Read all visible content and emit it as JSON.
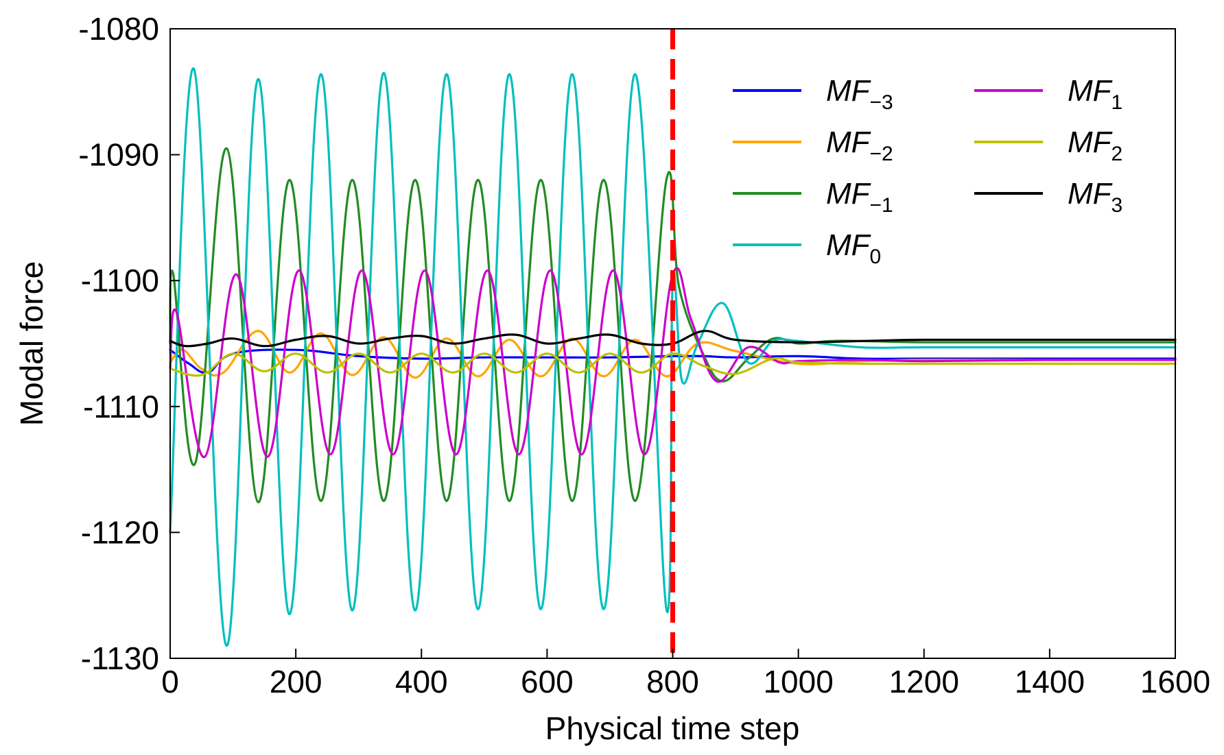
{
  "chart_data": {
    "type": "line",
    "title": "",
    "xlabel": "Physical time step",
    "ylabel": "Modal force",
    "xlim": [
      0,
      1600
    ],
    "ylim": [
      -1130,
      -1080
    ],
    "xticks": [
      0,
      200,
      400,
      600,
      800,
      1000,
      1200,
      1400,
      1600
    ],
    "yticks": [
      -1080,
      -1090,
      -1100,
      -1110,
      -1120,
      -1130
    ],
    "xtick_labels": [
      "0",
      "200",
      "400",
      "600",
      "800",
      "1000",
      "1200",
      "1400",
      "1600"
    ],
    "ytick_labels": [
      "-1080",
      "-1090",
      "-1100",
      "-1110",
      "-1120",
      "-1130"
    ],
    "grid": false,
    "legend_position": "top-right",
    "vertical_marker": {
      "x": 800,
      "color": "#ff0000",
      "style": "dashed"
    },
    "series": [
      {
        "name": "MF",
        "sub": "−3",
        "color": "#0000ff",
        "x": [
          0,
          30,
          60,
          100,
          200,
          300,
          400,
          500,
          600,
          700,
          800,
          850,
          900,
          1000,
          1100,
          1200,
          1400,
          1600
        ],
        "y": [
          -1105.5,
          -1106.6,
          -1107.3,
          -1105.8,
          -1105.5,
          -1106,
          -1106.2,
          -1106.1,
          -1106.1,
          -1106.1,
          -1106,
          -1106,
          -1106.1,
          -1106,
          -1106.2,
          -1106.2,
          -1106.2,
          -1106.2
        ]
      },
      {
        "name": "MF",
        "sub": "−2",
        "color": "#ffa500",
        "x": [
          0,
          20,
          50,
          85,
          140,
          190,
          240,
          290,
          340,
          390,
          440,
          490,
          540,
          590,
          640,
          690,
          740,
          790,
          840,
          900,
          1000,
          1100,
          1200,
          1400,
          1600
        ],
        "y": [
          -1106.5,
          -1105.5,
          -1107,
          -1107.3,
          -1104,
          -1107.3,
          -1104.2,
          -1107.5,
          -1104.5,
          -1107.7,
          -1104.6,
          -1107.6,
          -1104.7,
          -1107.6,
          -1104.6,
          -1107.6,
          -1104.7,
          -1107.6,
          -1105,
          -1105.6,
          -1106.6,
          -1106.4,
          -1106.3,
          -1106.3,
          -1106.3
        ]
      },
      {
        "name": "MF",
        "sub": "−1",
        "color": "#228b22",
        "x": [
          0,
          5,
          40,
          90,
          140,
          190,
          240,
          290,
          340,
          390,
          440,
          490,
          540,
          590,
          640,
          690,
          740,
          790,
          810,
          850,
          880,
          920,
          960,
          1000,
          1050,
          1100,
          1200,
          1400,
          1600
        ],
        "y": [
          -1105,
          -1099.5,
          -1114.5,
          -1089.5,
          -1117.6,
          -1092,
          -1117.5,
          -1092,
          -1117.5,
          -1092,
          -1117.5,
          -1092,
          -1117.5,
          -1092,
          -1117.5,
          -1092,
          -1117.5,
          -1092,
          -1100.5,
          -1106,
          -1108,
          -1106.2,
          -1104.6,
          -1105,
          -1104.8,
          -1104.8,
          -1104.9,
          -1104.9,
          -1104.9
        ]
      },
      {
        "name": "MF",
        "sub": "0",
        "color": "#00bfbf",
        "x": [
          0,
          38,
          90,
          140,
          190,
          240,
          290,
          340,
          390,
          440,
          490,
          540,
          590,
          640,
          690,
          740,
          790,
          800,
          815,
          840,
          880,
          920,
          960,
          1000,
          1100,
          1200,
          1400,
          1600
        ],
        "y": [
          -1120,
          -1083.2,
          -1129,
          -1084,
          -1126.5,
          -1083.6,
          -1126.2,
          -1083.5,
          -1126.2,
          -1083.6,
          -1126.1,
          -1083.6,
          -1126.1,
          -1083.6,
          -1126.1,
          -1083.6,
          -1126.1,
          -1100,
          -1108,
          -1105,
          -1101.8,
          -1106.5,
          -1104.8,
          -1104.8,
          -1105.3,
          -1105.3,
          -1105.3,
          -1105.3
        ]
      },
      {
        "name": "MF",
        "sub": "1",
        "color": "#cc00cc",
        "x": [
          0,
          10,
          55,
          105,
          155,
          205,
          255,
          305,
          355,
          405,
          455,
          505,
          555,
          605,
          655,
          705,
          755,
          800,
          830,
          870,
          920,
          970,
          1000,
          1100,
          1200,
          1400,
          1600
        ],
        "y": [
          -1107,
          -1102.5,
          -1114,
          -1099.5,
          -1114,
          -1099.2,
          -1113.8,
          -1099.2,
          -1113.8,
          -1099.2,
          -1113.8,
          -1099.2,
          -1113.8,
          -1099.2,
          -1113.8,
          -1099.2,
          -1113.8,
          -1099.5,
          -1103.2,
          -1108,
          -1105.3,
          -1106.5,
          -1106.4,
          -1106.3,
          -1106.4,
          -1106.3,
          -1106.3
        ]
      },
      {
        "name": "MF",
        "sub": "2",
        "color": "#bfbf00",
        "x": [
          0,
          50,
          100,
          150,
          200,
          250,
          300,
          350,
          400,
          450,
          500,
          550,
          600,
          650,
          700,
          750,
          800,
          850,
          900,
          960,
          1000,
          1100,
          1200,
          1400,
          1600
        ],
        "y": [
          -1107,
          -1107.5,
          -1105.8,
          -1107.2,
          -1105.8,
          -1107.3,
          -1105.8,
          -1107.3,
          -1105.8,
          -1107.3,
          -1105.8,
          -1107.3,
          -1105.8,
          -1107.3,
          -1105.8,
          -1107.3,
          -1105.8,
          -1106.8,
          -1107.4,
          -1106.2,
          -1106.5,
          -1106.6,
          -1106.6,
          -1106.6,
          -1106.6
        ]
      },
      {
        "name": "MF",
        "sub": "3",
        "color": "#000000",
        "x": [
          0,
          25,
          60,
          100,
          150,
          200,
          250,
          300,
          350,
          400,
          450,
          500,
          550,
          600,
          650,
          700,
          750,
          800,
          850,
          900,
          1000,
          1100,
          1200,
          1400,
          1600
        ],
        "y": [
          -1104.8,
          -1105.2,
          -1105,
          -1104.6,
          -1105.2,
          -1104.7,
          -1104.4,
          -1105,
          -1104.6,
          -1104.4,
          -1105,
          -1104.6,
          -1104.3,
          -1105,
          -1104.6,
          -1104.3,
          -1105,
          -1105,
          -1104,
          -1104.7,
          -1104.9,
          -1104.8,
          -1104.7,
          -1104.7,
          -1104.7
        ]
      }
    ]
  }
}
